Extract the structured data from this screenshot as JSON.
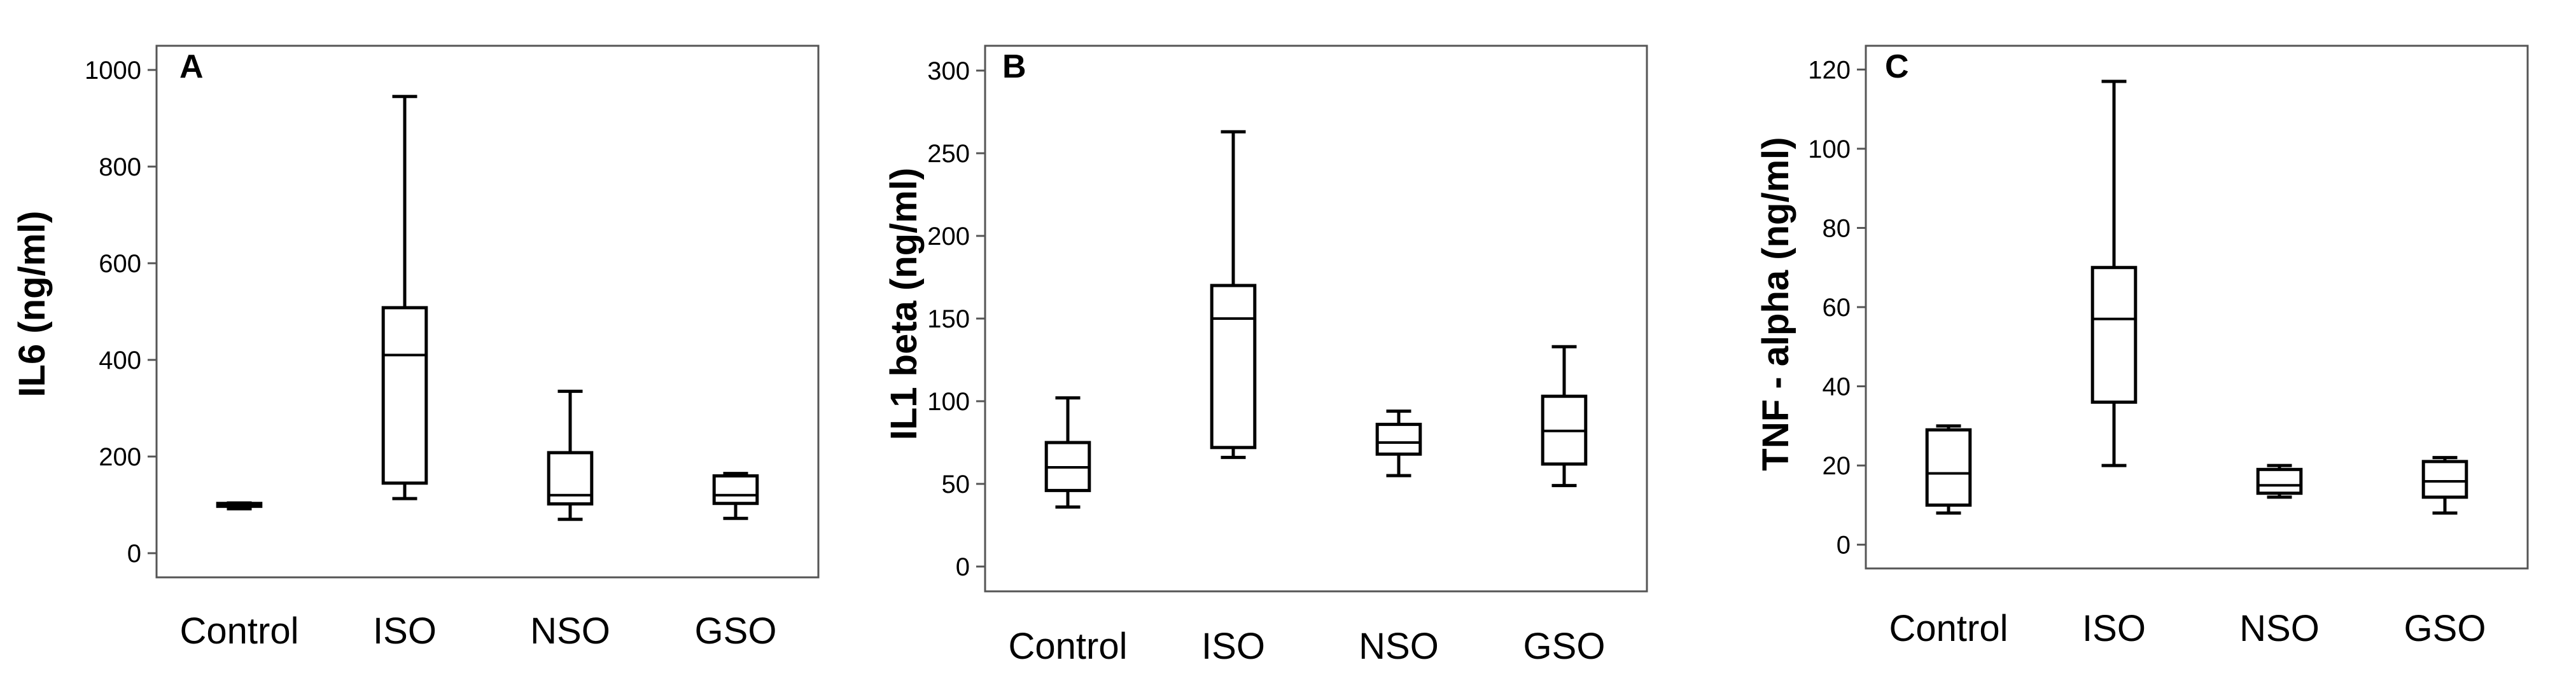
{
  "chart_data": [
    {
      "panel": "A",
      "type": "box",
      "ylabel": "IL6 (ng/ml)",
      "xlabel": "",
      "categories": [
        "Control",
        "ISO",
        "NSO",
        "GSO"
      ],
      "ylim": [
        -50,
        1050
      ],
      "yticks": [
        0,
        200,
        400,
        600,
        800,
        1000
      ],
      "boxes": [
        {
          "group": "Control",
          "min": 92,
          "q1": 97,
          "median": 100,
          "q3": 103,
          "max": 104
        },
        {
          "group": "ISO",
          "min": 113,
          "q1": 145,
          "median": 410,
          "q3": 508,
          "max": 945
        },
        {
          "group": "NSO",
          "min": 70,
          "q1": 102,
          "median": 120,
          "q3": 208,
          "max": 335
        },
        {
          "group": "GSO",
          "min": 72,
          "q1": 103,
          "median": 120,
          "q3": 160,
          "max": 165
        }
      ]
    },
    {
      "panel": "B",
      "type": "box",
      "ylabel": "IL1 beta (ng/ml)",
      "xlabel": "",
      "categories": [
        "Control",
        "ISO",
        "NSO",
        "GSO"
      ],
      "ylim": [
        -15,
        315
      ],
      "yticks": [
        0,
        50,
        100,
        150,
        200,
        250,
        300
      ],
      "boxes": [
        {
          "group": "Control",
          "min": 36,
          "q1": 46,
          "median": 60,
          "q3": 75,
          "max": 102
        },
        {
          "group": "ISO",
          "min": 66,
          "q1": 72,
          "median": 150,
          "q3": 170,
          "max": 263
        },
        {
          "group": "NSO",
          "min": 55,
          "q1": 68,
          "median": 75,
          "q3": 86,
          "max": 94
        },
        {
          "group": "GSO",
          "min": 49,
          "q1": 62,
          "median": 82,
          "q3": 103,
          "max": 133
        }
      ]
    },
    {
      "panel": "C",
      "type": "box",
      "ylabel": "TNF - alpha (ng/ml)",
      "xlabel": "",
      "categories": [
        "Control",
        "ISO",
        "NSO",
        "GSO"
      ],
      "ylim": [
        -6,
        126
      ],
      "yticks": [
        0,
        20,
        40,
        60,
        80,
        100,
        120
      ],
      "boxes": [
        {
          "group": "Control",
          "min": 8,
          "q1": 10,
          "median": 18,
          "q3": 29,
          "max": 30
        },
        {
          "group": "ISO",
          "min": 20,
          "q1": 36,
          "median": 57,
          "q3": 70,
          "max": 117
        },
        {
          "group": "NSO",
          "min": 12,
          "q1": 13,
          "median": 15,
          "q3": 19,
          "max": 20
        },
        {
          "group": "GSO",
          "min": 8,
          "q1": 12,
          "median": 16,
          "q3": 21,
          "max": 22
        }
      ]
    }
  ]
}
